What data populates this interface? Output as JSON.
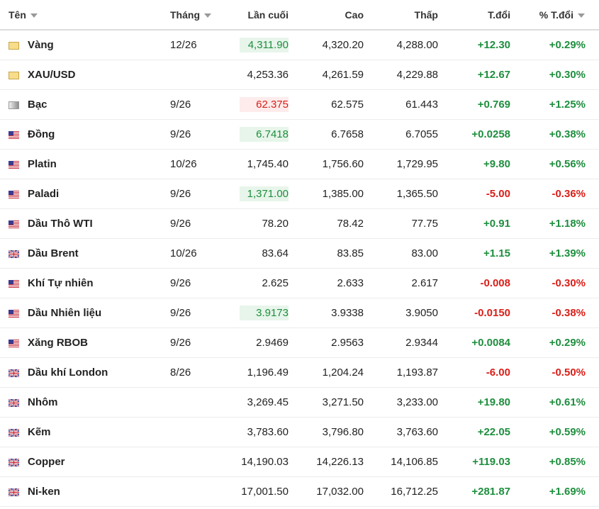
{
  "table": {
    "columns": [
      "Tên",
      "Tháng",
      "Lần cuối",
      "Cao",
      "Thấp",
      "T.đổi",
      "% T.đổi"
    ],
    "rows": [
      {
        "name": "Vàng",
        "flag": "gold",
        "month": "12/26",
        "last": "4,311.90",
        "high": "4,320.20",
        "low": "4,288.00",
        "change": "+12.30",
        "change_pct": "+0.29%",
        "highlight": "up"
      },
      {
        "name": "XAU/USD",
        "flag": "gold",
        "month": null,
        "last": "4,253.36",
        "high": "4,261.59",
        "low": "4,229.88",
        "change": "+12.67",
        "change_pct": "+0.30%",
        "highlight": null
      },
      {
        "name": "Bạc",
        "flag": "silver",
        "month": "9/26",
        "last": "62.375",
        "high": "62.575",
        "low": "61.443",
        "change": "+0.769",
        "change_pct": "+1.25%",
        "highlight": "down"
      },
      {
        "name": "Đồng",
        "flag": "us",
        "month": "9/26",
        "last": "6.7418",
        "high": "6.7658",
        "low": "6.7055",
        "change": "+0.0258",
        "change_pct": "+0.38%",
        "highlight": "up"
      },
      {
        "name": "Platin",
        "flag": "us",
        "month": "10/26",
        "last": "1,745.40",
        "high": "1,756.60",
        "low": "1,729.95",
        "change": "+9.80",
        "change_pct": "+0.56%",
        "highlight": null
      },
      {
        "name": "Paladi",
        "flag": "us",
        "month": "9/26",
        "last": "1,371.00",
        "high": "1,385.00",
        "low": "1,365.50",
        "change": "-5.00",
        "change_pct": "-0.36%",
        "highlight": "up"
      },
      {
        "name": "Dầu Thô WTI",
        "flag": "us",
        "month": "9/26",
        "last": "78.20",
        "high": "78.42",
        "low": "77.75",
        "change": "+0.91",
        "change_pct": "+1.18%",
        "highlight": null
      },
      {
        "name": "Dầu Brent",
        "flag": "uk",
        "month": "10/26",
        "last": "83.64",
        "high": "83.85",
        "low": "83.00",
        "change": "+1.15",
        "change_pct": "+1.39%",
        "highlight": null
      },
      {
        "name": "Khí Tự nhiên",
        "flag": "us",
        "month": "9/26",
        "last": "2.625",
        "high": "2.633",
        "low": "2.617",
        "change": "-0.008",
        "change_pct": "-0.30%",
        "highlight": null
      },
      {
        "name": "Dầu Nhiên liệu",
        "flag": "us",
        "month": "9/26",
        "last": "3.9173",
        "high": "3.9338",
        "low": "3.9050",
        "change": "-0.0150",
        "change_pct": "-0.38%",
        "highlight": "up"
      },
      {
        "name": "Xăng RBOB",
        "flag": "us",
        "month": "9/26",
        "last": "2.9469",
        "high": "2.9563",
        "low": "2.9344",
        "change": "+0.0084",
        "change_pct": "+0.29%",
        "highlight": null
      },
      {
        "name": "Dầu khí London",
        "flag": "uk",
        "month": "8/26",
        "last": "1,196.49",
        "high": "1,204.24",
        "low": "1,193.87",
        "change": "-6.00",
        "change_pct": "-0.50%",
        "highlight": null
      },
      {
        "name": "Nhôm",
        "flag": "uk",
        "month": null,
        "last": "3,269.45",
        "high": "3,271.50",
        "low": "3,233.00",
        "change": "+19.80",
        "change_pct": "+0.61%",
        "highlight": null
      },
      {
        "name": "Kẽm",
        "flag": "uk",
        "month": null,
        "last": "3,783.60",
        "high": "3,796.80",
        "low": "3,763.60",
        "change": "+22.05",
        "change_pct": "+0.59%",
        "highlight": null
      },
      {
        "name": "Copper",
        "flag": "uk",
        "month": null,
        "last": "14,190.03",
        "high": "14,226.13",
        "low": "14,106.85",
        "change": "+119.03",
        "change_pct": "+0.85%",
        "highlight": null
      },
      {
        "name": "Ni-ken",
        "flag": "uk",
        "month": null,
        "last": "17,001.50",
        "high": "17,032.00",
        "low": "16,712.25",
        "change": "+281.87",
        "change_pct": "+1.69%",
        "highlight": null
      }
    ]
  }
}
